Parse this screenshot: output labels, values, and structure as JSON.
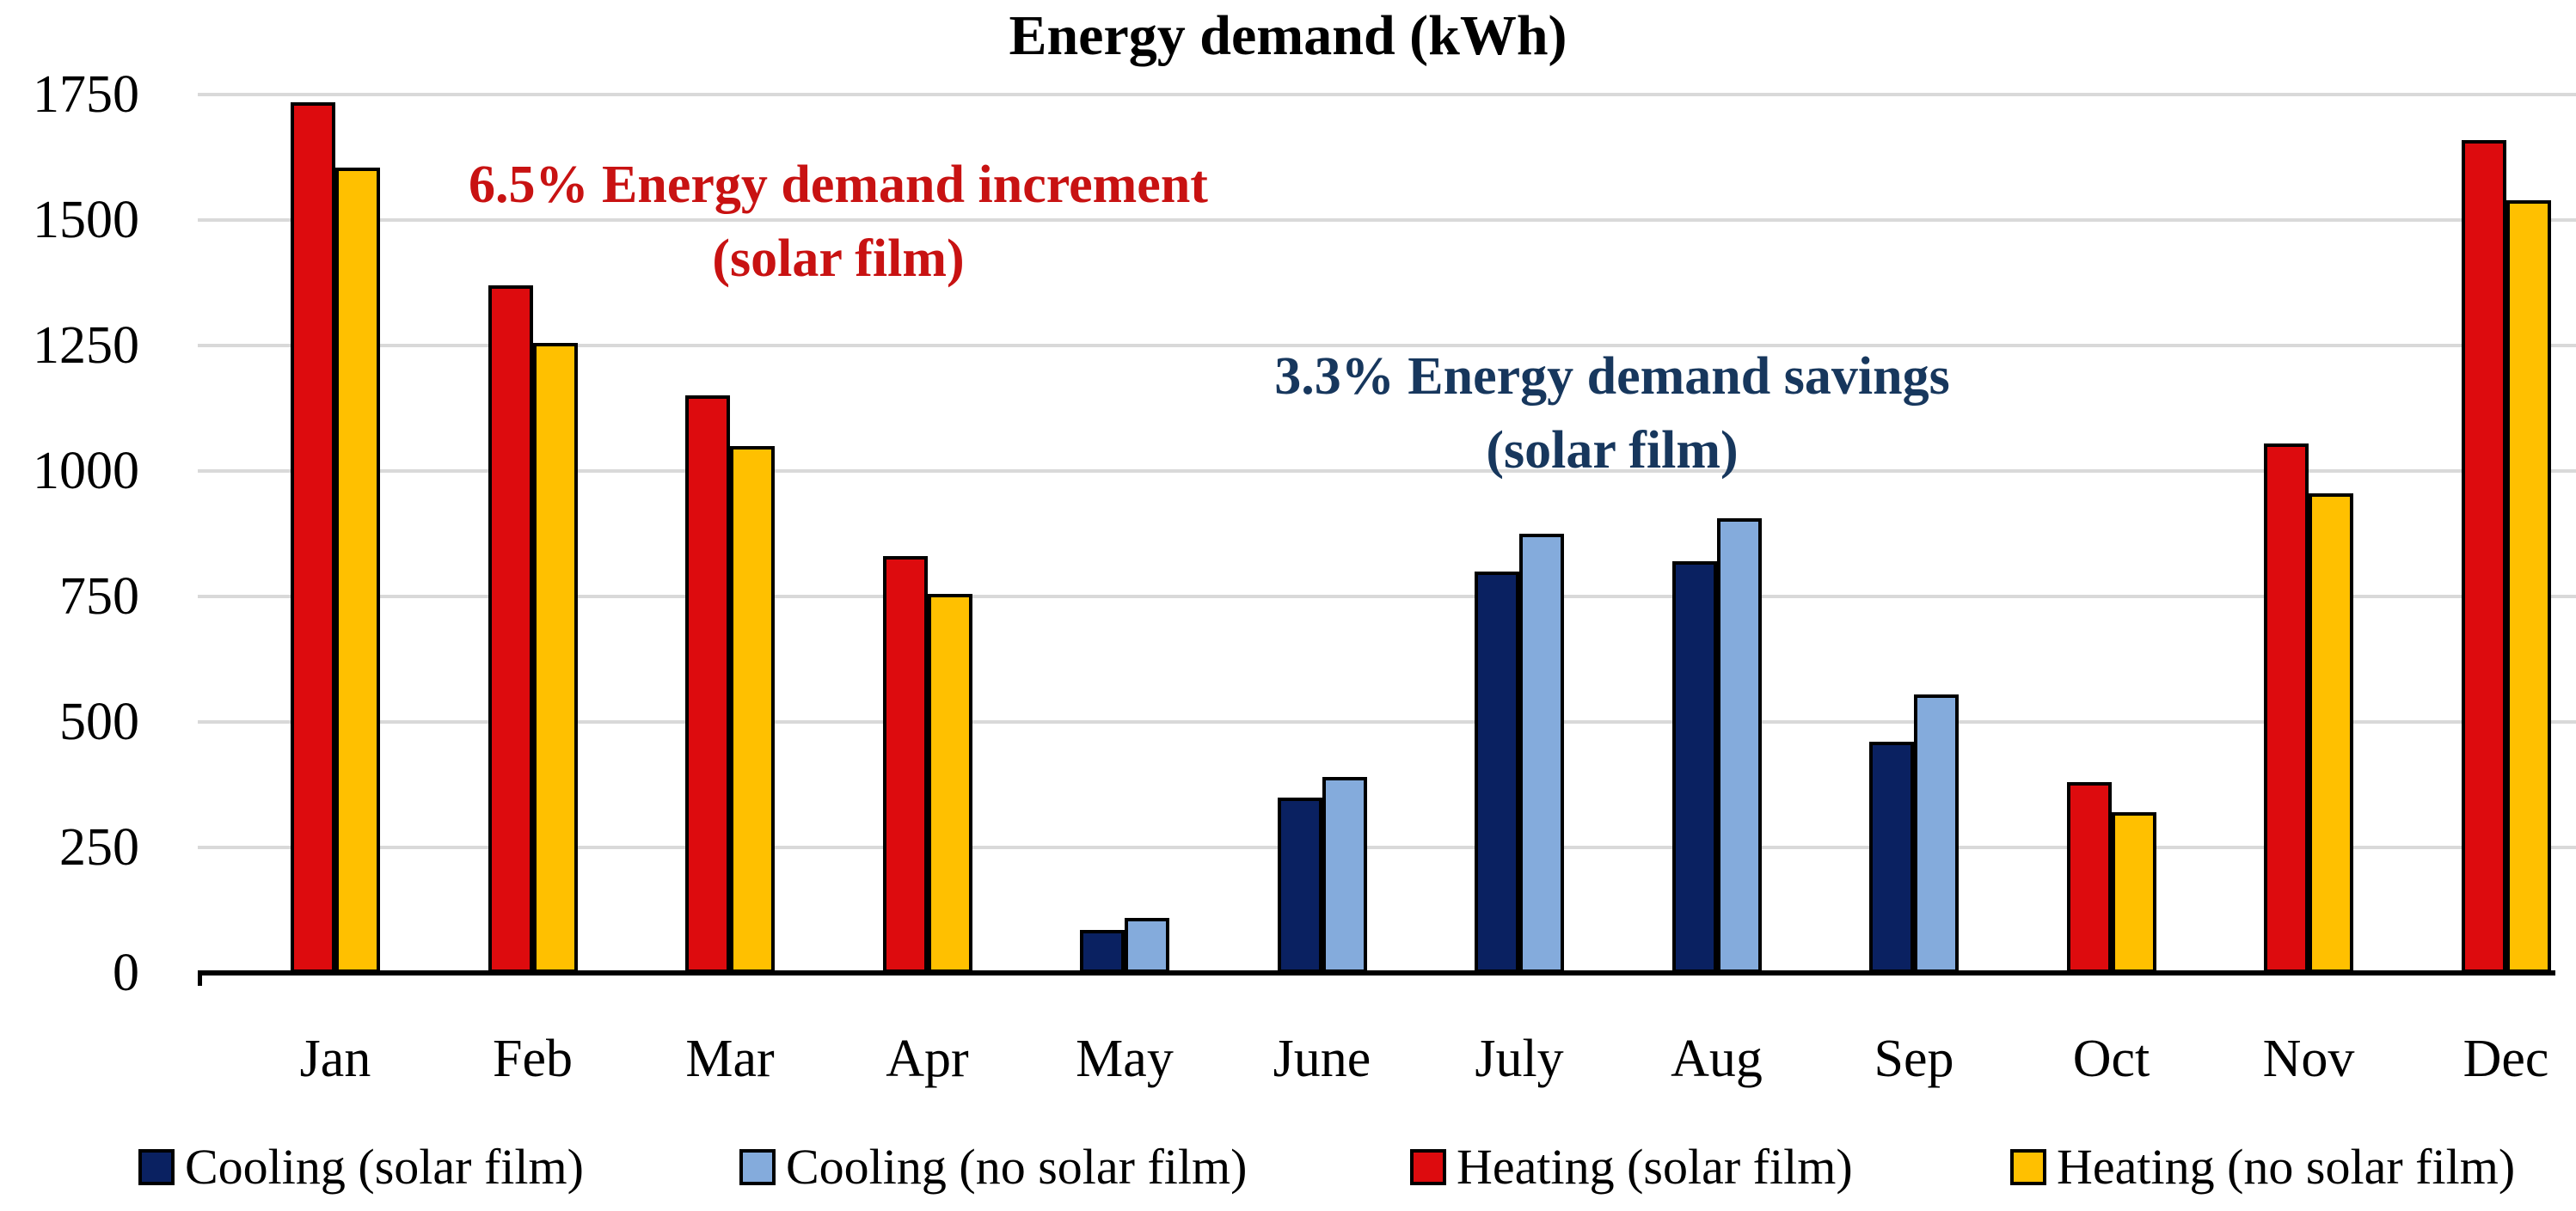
{
  "title": "Energy demand (kWh)",
  "annotations": {
    "increment": {
      "line1": "6.5% Energy demand increment",
      "line2": "(solar film)",
      "color": "#C81212"
    },
    "savings": {
      "line1": "3.3% Energy demand savings",
      "line2": "(solar film)",
      "color": "#17375D"
    }
  },
  "chart_data": {
    "type": "bar",
    "title": "Energy demand (kWh)",
    "categories": [
      "Jan",
      "Feb",
      "Mar",
      "Apr",
      "May",
      "June",
      "July",
      "Aug",
      "Sep",
      "Oct",
      "Nov",
      "Dec"
    ],
    "series": [
      {
        "name": "Cooling (solar film)",
        "color": "#0A2161",
        "values": [
          0,
          0,
          0,
          0,
          85,
          350,
          800,
          820,
          460,
          0,
          0,
          0
        ]
      },
      {
        "name": "Cooling (no solar film)",
        "color": "#84ABDC",
        "values": [
          0,
          0,
          0,
          0,
          110,
          390,
          875,
          905,
          555,
          0,
          0,
          0
        ]
      },
      {
        "name": "Heating (solar film)",
        "color": "#DD0B0E",
        "values": [
          1735,
          1370,
          1150,
          830,
          0,
          0,
          0,
          0,
          0,
          380,
          1055,
          1660
        ]
      },
      {
        "name": "Heating (no solar film)",
        "color": "#FFC000",
        "values": [
          1605,
          1255,
          1050,
          755,
          0,
          0,
          0,
          0,
          0,
          320,
          955,
          1540
        ]
      }
    ],
    "xlabel": "",
    "ylabel": "",
    "ylim": [
      0,
      1750
    ],
    "yticks": [
      0,
      250,
      500,
      750,
      1000,
      1250,
      1500,
      1750
    ],
    "grid": true,
    "legend_position": "bottom",
    "bar_outline_color": "#000000",
    "gridline_color": "#D9D9D9",
    "axis_color": "#000000"
  }
}
